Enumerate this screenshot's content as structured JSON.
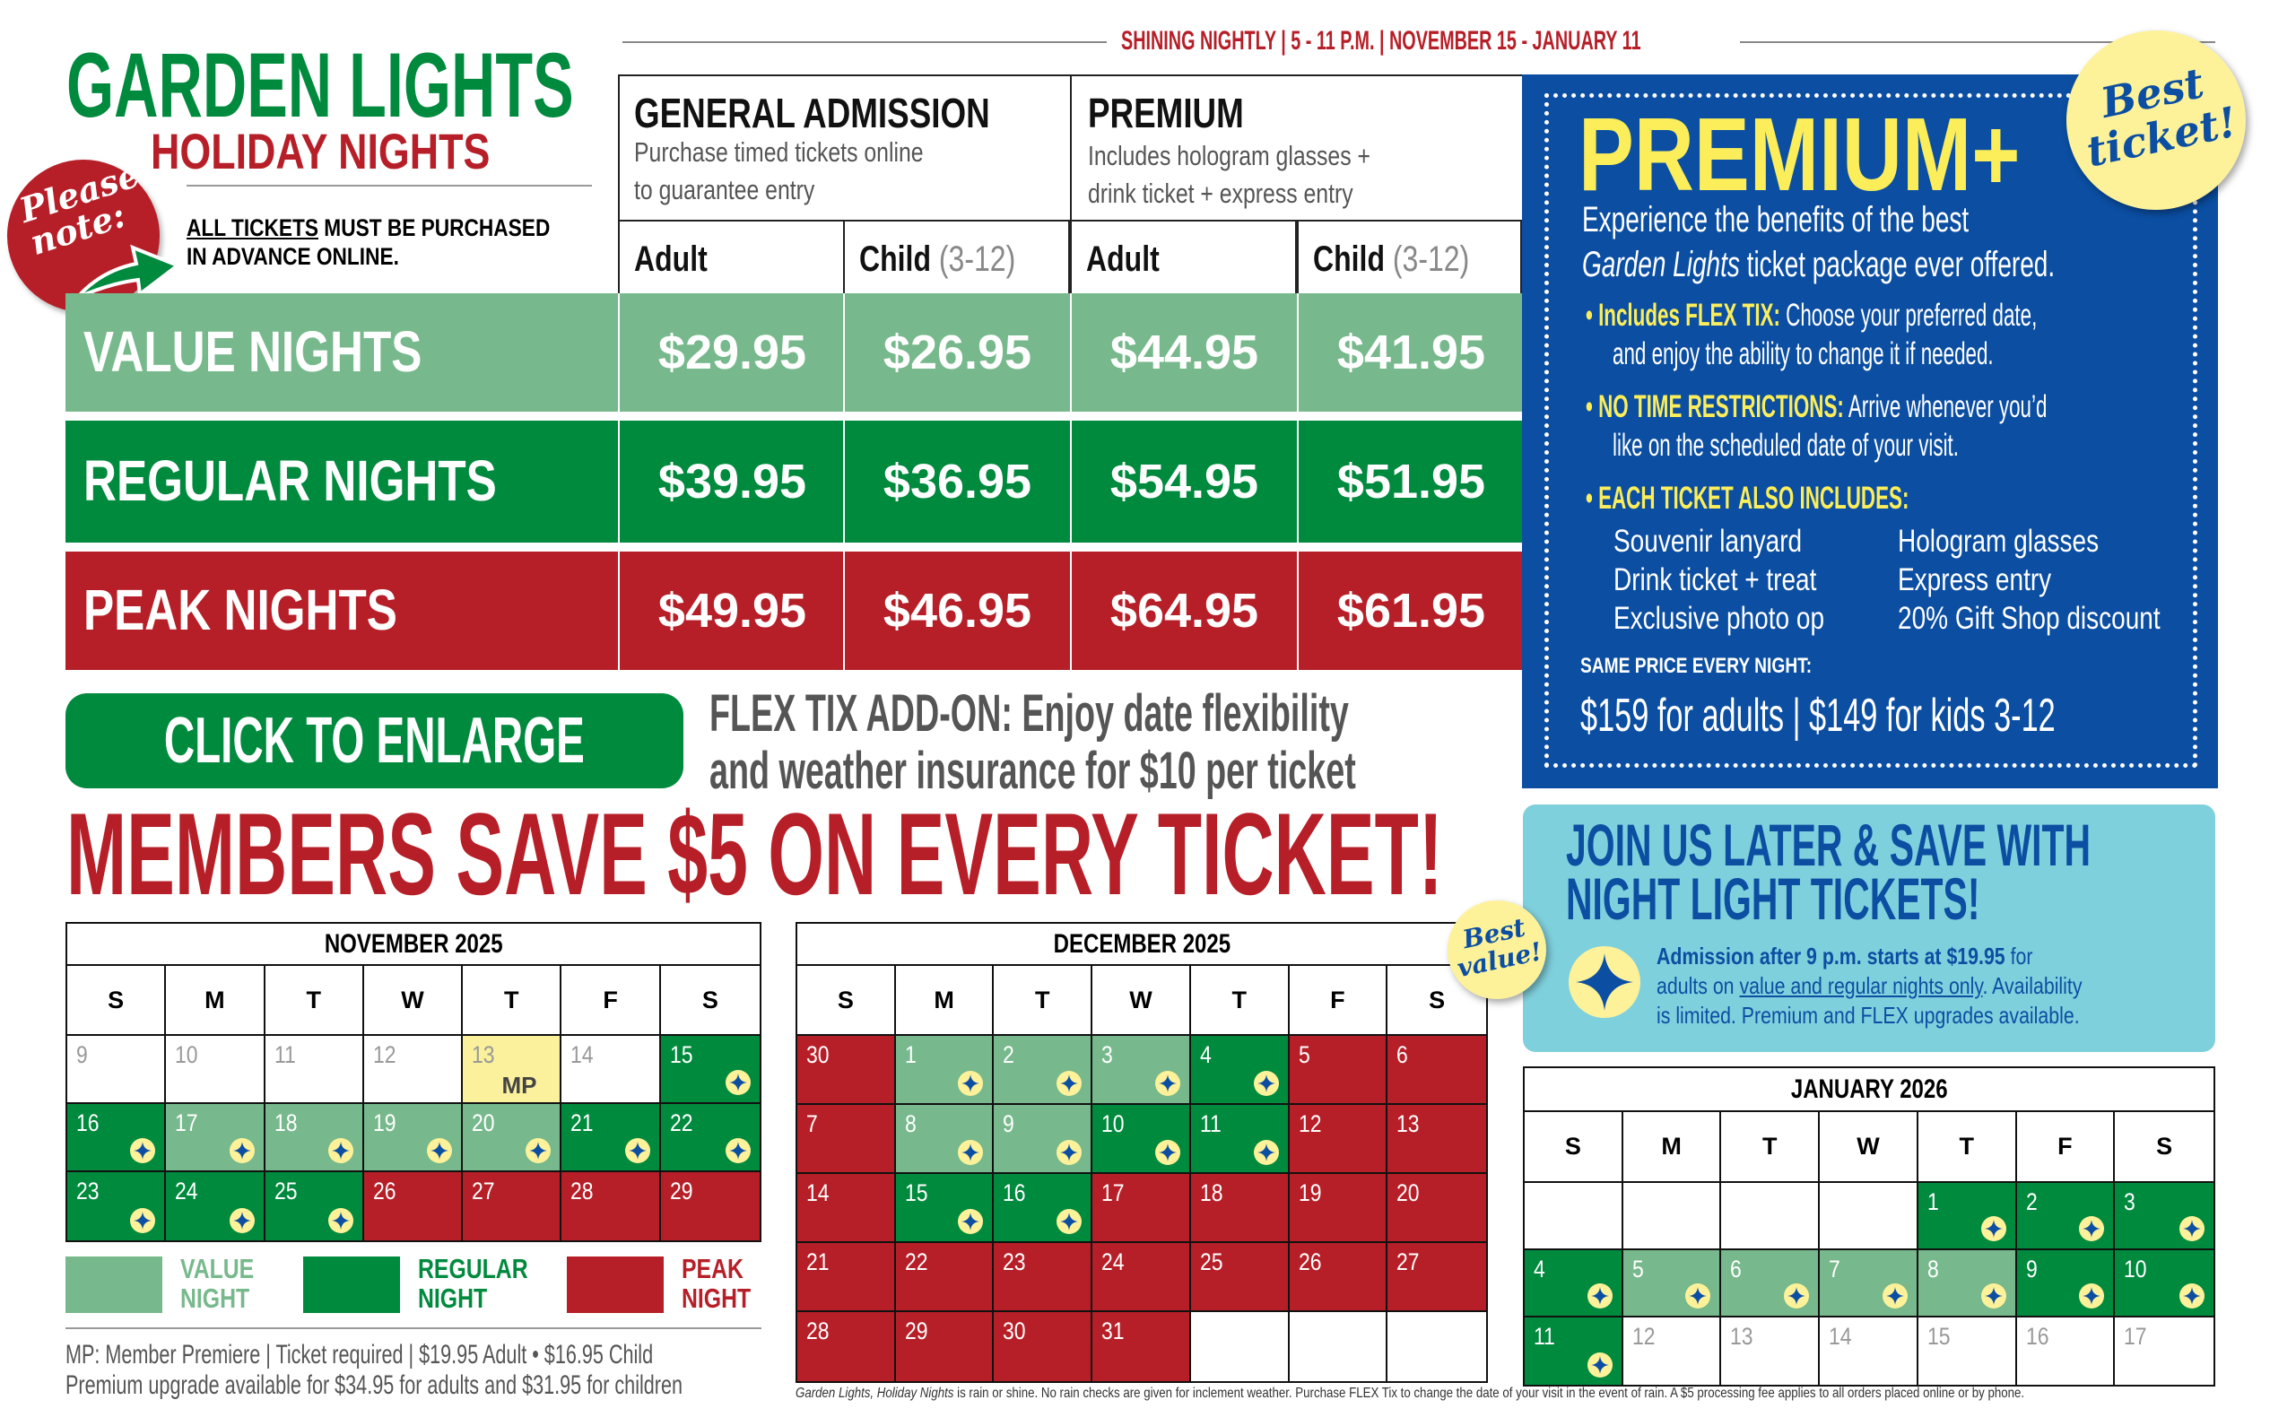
{
  "title": {
    "main": "GARDEN LIGHTS",
    "sub": "HOLIDAY NIGHTS"
  },
  "note": {
    "badge": "Please note:",
    "line1_u": "ALL TICKETS",
    "line1": " MUST BE PURCHASED",
    "line2": "IN ADVANCE ONLINE."
  },
  "banner": "SHINING NIGHTLY | 5 - 11 P.M. | NOVEMBER 15 - JANUARY 11",
  "pricing": {
    "general": {
      "title": "GENERAL ADMISSION",
      "sub1": "Purchase timed tickets online",
      "sub2": "to guarantee entry"
    },
    "premium": {
      "title": "PREMIUM",
      "sub1": "Includes hologram glasses +",
      "sub2": "drink ticket + express entry"
    },
    "columns": [
      {
        "label": "Adult",
        "extra": ""
      },
      {
        "label": "Child",
        "extra": " (3-12)"
      },
      {
        "label": "Adult",
        "extra": ""
      },
      {
        "label": "Child",
        "extra": " (3-12)"
      }
    ],
    "rows": [
      {
        "label": "VALUE NIGHTS",
        "color": "#77b98c",
        "prices": [
          "$29.95",
          "$26.95",
          "$44.95",
          "$41.95"
        ]
      },
      {
        "label": "REGULAR NIGHTS",
        "color": "#008a3e",
        "prices": [
          "$39.95",
          "$36.95",
          "$54.95",
          "$51.95"
        ]
      },
      {
        "label": "PEAK NIGHTS",
        "color": "#b71f28",
        "prices": [
          "$49.95",
          "$46.95",
          "$64.95",
          "$61.95"
        ]
      }
    ]
  },
  "premium_plus": {
    "title": "PREMIUM+",
    "badge": "Best ticket!",
    "intro1": "Experience the benefits of the best",
    "intro2_i": "Garden Lights",
    "intro2": " ticket package ever offered.",
    "bullets": [
      {
        "head": "Includes FLEX TIX:",
        "text": " Choose your preferred date,",
        "text2": "and enjoy the ability to change it if needed."
      },
      {
        "head": "NO TIME RESTRICTIONS:",
        "text": " Arrive whenever you’d",
        "text2": "like on the scheduled date of your visit."
      },
      {
        "head": "EACH TICKET ALSO INCLUDES:",
        "text": "",
        "text2": ""
      }
    ],
    "includes_left": [
      "Souvenir lanyard",
      "Drink ticket + treat",
      "Exclusive photo op"
    ],
    "includes_right": [
      "Hologram glasses",
      "Express entry",
      "20% Gift Shop discount"
    ],
    "same_price": "SAME PRICE EVERY NIGHT:",
    "price_line": "$159 for adults | $149 for kids 3-12"
  },
  "enlarge_label": "CLICK TO ENLARGE",
  "flex": {
    "line1": "FLEX TIX ADD-ON: Enjoy date flexibility",
    "line2": "and weather insurance for $10 per ticket"
  },
  "members": "MEMBERS SAVE $5 ON EVERY TICKET!",
  "best_value": "Best value!",
  "join": {
    "title1": "JOIN US LATER & SAVE WITH",
    "title2": "NIGHT LIGHT TICKETS!",
    "bold": "Admission after 9 p.m. starts at $19.95",
    "t1": " for",
    "t2a": "adults on ",
    "t2u": "value and regular nights only",
    "t2b": ". Availability",
    "t3": "is limited. Premium and FLEX upgrades available."
  },
  "legend": [
    {
      "l1": "VALUE",
      "l2": "NIGHT",
      "color": "#77b98c"
    },
    {
      "l1": "REGULAR",
      "l2": "NIGHT",
      "color": "#008a3e"
    },
    {
      "l1": "PEAK",
      "l2": "NIGHT",
      "color": "#b71f28"
    }
  ],
  "mp_note": {
    "line1": "MP: Member Premiere | Ticket required | $19.95 Adult • $16.95 Child",
    "line2": "Premium upgrade available for $34.95 for adults and $31.95 for children"
  },
  "footer": {
    "italic": "Garden Lights, Holiday Nights",
    "text": " is rain or shine. No rain checks are given for inclement weather. Purchase FLEX Tix to change the date of your visit in the event of rain. A $5 processing fee applies to all orders placed online or by phone."
  },
  "colors": {
    "value": "#77b98c",
    "regular": "#008a3e",
    "peak": "#b71f28",
    "premium_blue": "#0b4ea2",
    "mp_yellow": "#fbf09c"
  },
  "calendars": [
    {
      "title": "NOVEMBER 2025",
      "weekdays": [
        "S",
        "M",
        "T",
        "W",
        "T",
        "F",
        "S"
      ],
      "weeks": [
        [
          {
            "d": "9",
            "t": "off"
          },
          {
            "d": "10",
            "t": "off"
          },
          {
            "d": "11",
            "t": "off"
          },
          {
            "d": "12",
            "t": "off"
          },
          {
            "d": "13",
            "t": "mp",
            "note": "MP"
          },
          {
            "d": "14",
            "t": "off"
          },
          {
            "d": "15",
            "t": "regular",
            "s": 1
          }
        ],
        [
          {
            "d": "16",
            "t": "regular",
            "s": 1
          },
          {
            "d": "17",
            "t": "value",
            "s": 1
          },
          {
            "d": "18",
            "t": "value",
            "s": 1
          },
          {
            "d": "19",
            "t": "value",
            "s": 1
          },
          {
            "d": "20",
            "t": "value",
            "s": 1
          },
          {
            "d": "21",
            "t": "regular",
            "s": 1
          },
          {
            "d": "22",
            "t": "regular",
            "s": 1
          }
        ],
        [
          {
            "d": "23",
            "t": "regular",
            "s": 1
          },
          {
            "d": "24",
            "t": "regular",
            "s": 1
          },
          {
            "d": "25",
            "t": "regular",
            "s": 1
          },
          {
            "d": "26",
            "t": "peak"
          },
          {
            "d": "27",
            "t": "peak"
          },
          {
            "d": "28",
            "t": "peak"
          },
          {
            "d": "29",
            "t": "peak"
          }
        ]
      ]
    },
    {
      "title": "DECEMBER 2025",
      "weekdays": [
        "S",
        "M",
        "T",
        "W",
        "T",
        "F",
        "S"
      ],
      "weeks": [
        [
          {
            "d": "30",
            "t": "peak"
          },
          {
            "d": "1",
            "t": "value",
            "s": 1
          },
          {
            "d": "2",
            "t": "value",
            "s": 1
          },
          {
            "d": "3",
            "t": "value",
            "s": 1
          },
          {
            "d": "4",
            "t": "regular",
            "s": 1
          },
          {
            "d": "5",
            "t": "peak"
          },
          {
            "d": "6",
            "t": "peak"
          }
        ],
        [
          {
            "d": "7",
            "t": "peak"
          },
          {
            "d": "8",
            "t": "value",
            "s": 1
          },
          {
            "d": "9",
            "t": "value",
            "s": 1
          },
          {
            "d": "10",
            "t": "regular",
            "s": 1
          },
          {
            "d": "11",
            "t": "regular",
            "s": 1
          },
          {
            "d": "12",
            "t": "peak"
          },
          {
            "d": "13",
            "t": "peak"
          }
        ],
        [
          {
            "d": "14",
            "t": "peak"
          },
          {
            "d": "15",
            "t": "regular",
            "s": 1
          },
          {
            "d": "16",
            "t": "regular",
            "s": 1
          },
          {
            "d": "17",
            "t": "peak"
          },
          {
            "d": "18",
            "t": "peak"
          },
          {
            "d": "19",
            "t": "peak"
          },
          {
            "d": "20",
            "t": "peak"
          }
        ],
        [
          {
            "d": "21",
            "t": "peak"
          },
          {
            "d": "22",
            "t": "peak"
          },
          {
            "d": "23",
            "t": "peak"
          },
          {
            "d": "24",
            "t": "peak"
          },
          {
            "d": "25",
            "t": "peak"
          },
          {
            "d": "26",
            "t": "peak"
          },
          {
            "d": "27",
            "t": "peak"
          }
        ],
        [
          {
            "d": "28",
            "t": "peak"
          },
          {
            "d": "29",
            "t": "peak"
          },
          {
            "d": "30",
            "t": "peak"
          },
          {
            "d": "31",
            "t": "peak"
          },
          {
            "d": "",
            "t": "blank"
          },
          {
            "d": "",
            "t": "blank"
          },
          {
            "d": "",
            "t": "blank"
          }
        ]
      ]
    },
    {
      "title": "JANUARY 2026",
      "weekdays": [
        "S",
        "M",
        "T",
        "W",
        "T",
        "F",
        "S"
      ],
      "weeks": [
        [
          {
            "d": "",
            "t": "blank"
          },
          {
            "d": "",
            "t": "blank"
          },
          {
            "d": "",
            "t": "blank"
          },
          {
            "d": "",
            "t": "blank"
          },
          {
            "d": "1",
            "t": "regular",
            "s": 1
          },
          {
            "d": "2",
            "t": "regular",
            "s": 1
          },
          {
            "d": "3",
            "t": "regular",
            "s": 1
          }
        ],
        [
          {
            "d": "4",
            "t": "regular",
            "s": 1
          },
          {
            "d": "5",
            "t": "value",
            "s": 1
          },
          {
            "d": "6",
            "t": "value",
            "s": 1
          },
          {
            "d": "7",
            "t": "value",
            "s": 1
          },
          {
            "d": "8",
            "t": "value",
            "s": 1
          },
          {
            "d": "9",
            "t": "regular",
            "s": 1
          },
          {
            "d": "10",
            "t": "regular",
            "s": 1
          }
        ],
        [
          {
            "d": "11",
            "t": "regular",
            "s": 1
          },
          {
            "d": "12",
            "t": "off"
          },
          {
            "d": "13",
            "t": "off"
          },
          {
            "d": "14",
            "t": "off"
          },
          {
            "d": "15",
            "t": "off"
          },
          {
            "d": "16",
            "t": "off"
          },
          {
            "d": "17",
            "t": "off"
          }
        ]
      ]
    }
  ]
}
